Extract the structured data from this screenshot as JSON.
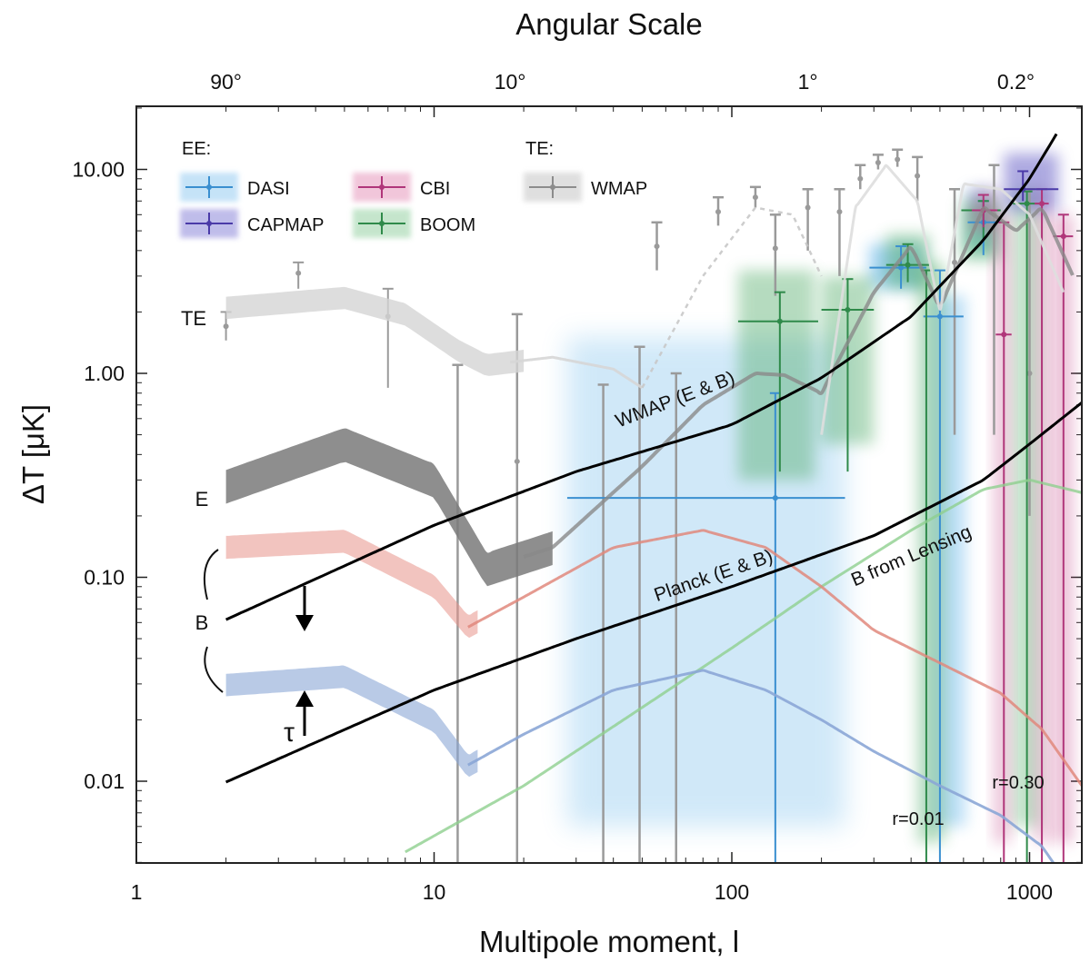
{
  "chart_data": {
    "type": "line",
    "title": "Angular Scale",
    "xlabel": "Multipole moment, l",
    "ylabel": "ΔT [μK]",
    "x_scale": "log",
    "y_scale": "log",
    "xlim": [
      1,
      1500
    ],
    "ylim": [
      0.0045,
      20
    ],
    "x_ticks": [
      "1",
      "10",
      "100",
      "1000"
    ],
    "x_tick_values": [
      1,
      10,
      100,
      1000
    ],
    "y_ticks": [
      "0.01",
      "0.10",
      "1.00",
      "10.00"
    ],
    "y_tick_values": [
      0.01,
      0.1,
      1,
      10
    ],
    "top_ticks": [
      "90°",
      "10°",
      "1°",
      "0.2°"
    ],
    "top_tick_values": [
      2,
      18,
      180,
      900
    ],
    "legend": {
      "ee_title": "EE:",
      "te_title": "TE:",
      "entries": [
        {
          "name": "DASI",
          "color": "#3a8fd0"
        },
        {
          "name": "CBI",
          "color": "#b0367a"
        },
        {
          "name": "CAPMAP",
          "color": "#4a3aa8"
        },
        {
          "name": "BOOM",
          "color": "#2f8a4a"
        },
        {
          "name": "WMAP",
          "color": "#8c8c8c"
        }
      ]
    },
    "curve_labels": {
      "te": "TE",
      "e": "E",
      "b": "B",
      "tau": "τ",
      "wmap_noise": "WMAP (E & B)",
      "planck_noise": "Planck (E & B)",
      "lensing": "B from Lensing",
      "r_high": "r=0.30",
      "r_low": "r=0.01"
    },
    "series": [
      {
        "name": "WMAP (E & B)",
        "color": "#000000",
        "x": [
          2,
          10,
          30,
          100,
          200,
          400,
          700,
          1000,
          1300
        ],
        "y": [
          0.062,
          0.18,
          0.33,
          0.56,
          0.95,
          1.9,
          4.5,
          9,
          17
        ]
      },
      {
        "name": "Planck (E & B)",
        "color": "#000000",
        "x": [
          2,
          10,
          30,
          100,
          300,
          700,
          1000,
          1500
        ],
        "y": [
          0.0099,
          0.028,
          0.05,
          0.09,
          0.16,
          0.3,
          0.45,
          0.72
        ]
      },
      {
        "name": "B from Lensing",
        "color": "#8fd08f",
        "x": [
          8,
          20,
          50,
          100,
          200,
          400,
          700,
          1000,
          1500
        ],
        "y": [
          0.0045,
          0.0095,
          0.023,
          0.045,
          0.09,
          0.17,
          0.27,
          0.3,
          0.26
        ]
      },
      {
        "name": "E",
        "color": "#808080",
        "x": [
          2,
          5,
          10,
          15,
          25,
          50,
          80,
          120,
          150,
          200,
          300,
          400,
          500,
          700,
          900,
          1100,
          1400
        ],
        "y": [
          0.28,
          0.45,
          0.3,
          0.11,
          0.14,
          0.35,
          0.7,
          1.0,
          0.98,
          0.8,
          2.5,
          4.2,
          2.1,
          6.5,
          5.0,
          6.5,
          3.0
        ]
      },
      {
        "name": "TE",
        "color": "#d6d6d6",
        "x": [
          2,
          5,
          8,
          12,
          15,
          25,
          40,
          50
        ],
        "y": [
          2.1,
          2.35,
          1.95,
          1.3,
          1.1,
          1.2,
          1.05,
          0.85
        ]
      },
      {
        "name": "B (r=0.30)",
        "color": "#e8948a",
        "x": [
          2,
          5,
          10,
          13,
          20,
          40,
          80,
          130,
          200,
          300,
          500,
          800,
          1100,
          1500
        ],
        "y": [
          0.14,
          0.15,
          0.09,
          0.057,
          0.08,
          0.14,
          0.17,
          0.14,
          0.09,
          0.055,
          0.038,
          0.027,
          0.018,
          0.0095
        ]
      },
      {
        "name": "B (r=0.01)",
        "color": "#8ba6d6",
        "x": [
          2,
          5,
          10,
          13,
          20,
          40,
          80,
          130,
          200,
          300,
          500,
          800,
          1100,
          1500
        ],
        "y": [
          0.03,
          0.033,
          0.02,
          0.012,
          0.017,
          0.028,
          0.035,
          0.028,
          0.02,
          0.014,
          0.0095,
          0.0068,
          0.0048,
          0.0025
        ]
      }
    ]
  }
}
